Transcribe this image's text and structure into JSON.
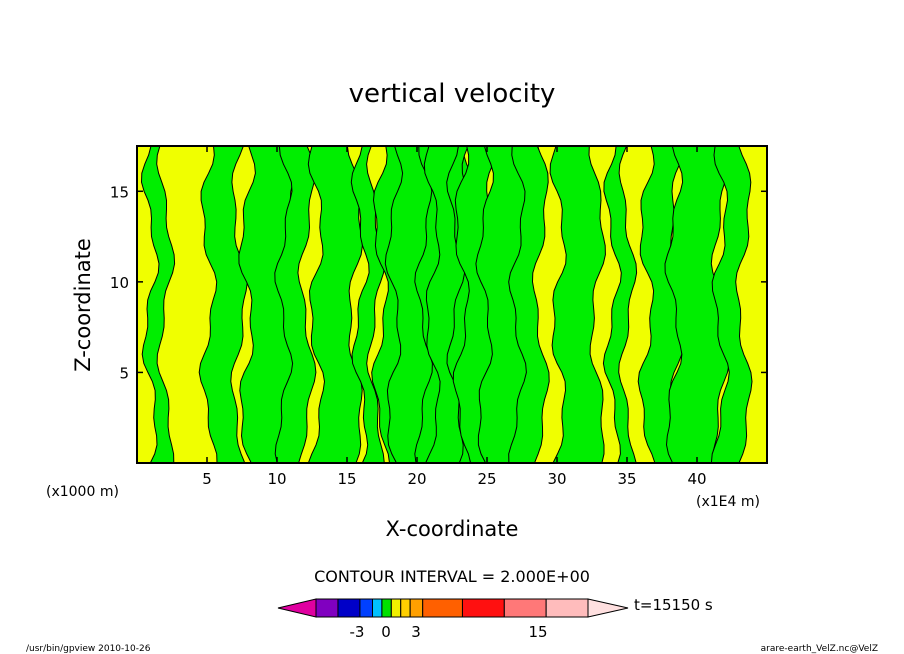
{
  "chart_data": {
    "type": "heatmap",
    "title": "vertical velocity",
    "xlabel": "X-coordinate",
    "ylabel": "Z-coordinate",
    "x_unit_left": "(x1000 m)",
    "x_unit_right": "(x1E4 m)",
    "xlim": [
      0,
      45
    ],
    "ylim": [
      0,
      17.5
    ],
    "xticks": [
      "5",
      "10",
      "15",
      "20",
      "25",
      "30",
      "35",
      "40"
    ],
    "yticks": [
      "5",
      "10",
      "15"
    ],
    "contour_interval": "CONTOUR INTERVAL = 2.000E+00",
    "time_label": "t=15150 s",
    "colorbar_labels": [
      "-3",
      "0",
      "3",
      "15"
    ],
    "colorbar_colors": [
      "#e000a0",
      "#8000c0",
      "#0000c8",
      "#0040ff",
      "#00c0ff",
      "#00e000",
      "#f0f000",
      "#ffd000",
      "#ffa000",
      "#ff6000",
      "#ff1010",
      "#ff7878",
      "#ffbcbc",
      "#ffe0e0"
    ],
    "field_colors": {
      "positive": "#f0ff00",
      "negative": "#00ee00",
      "contour": "#000000"
    },
    "x_band_centers": [
      1.5,
      6.2,
      9.5,
      11.3,
      14.2,
      16.5,
      18.5,
      20.0,
      21.3,
      22.5,
      23.3,
      24.3,
      26.5,
      28.0,
      31.5,
      34.5,
      37.5,
      40.0,
      42.5
    ]
  },
  "footer": {
    "left": "/usr/bin/gpview  2010-10-26",
    "right": "arare-earth_VelZ.nc@VelZ"
  }
}
